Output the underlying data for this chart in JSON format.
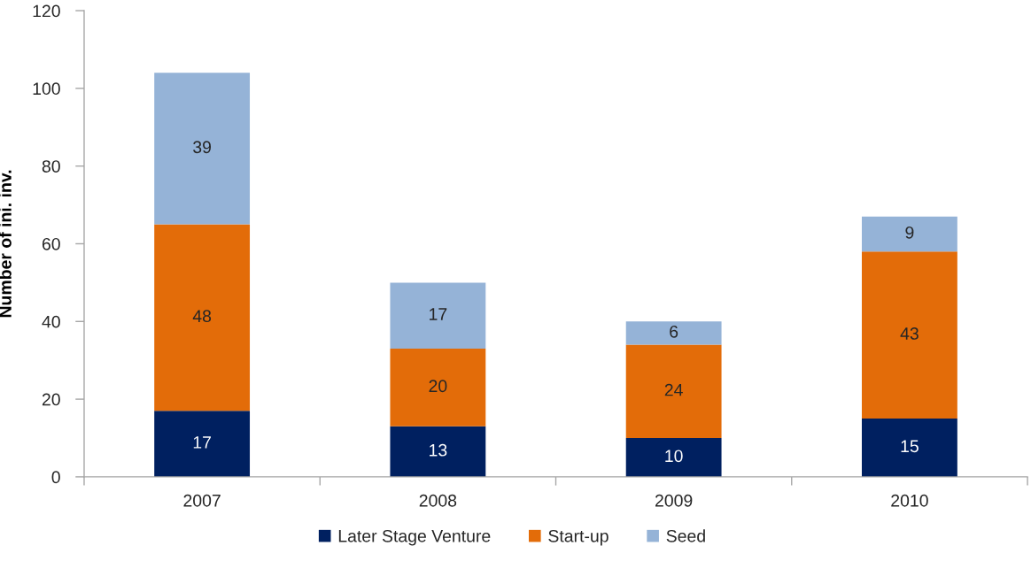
{
  "chart_data": {
    "type": "bar",
    "stacked": true,
    "ylabel": "Number of ini. inv.",
    "categories": [
      "2007",
      "2008",
      "2009",
      "2010"
    ],
    "series": [
      {
        "name": "Later Stage Venture",
        "color": "#002060",
        "values": [
          17,
          13,
          10,
          15
        ]
      },
      {
        "name": "Start-up",
        "color": "#e36c09",
        "values": [
          48,
          20,
          24,
          43
        ]
      },
      {
        "name": "Seed",
        "color": "#95b3d7",
        "values": [
          39,
          17,
          6,
          9
        ]
      }
    ],
    "ylim": [
      0,
      120
    ],
    "yticks": [
      0,
      20,
      40,
      60,
      80,
      100,
      120
    ],
    "data_labels": true,
    "legend": "bottom"
  }
}
